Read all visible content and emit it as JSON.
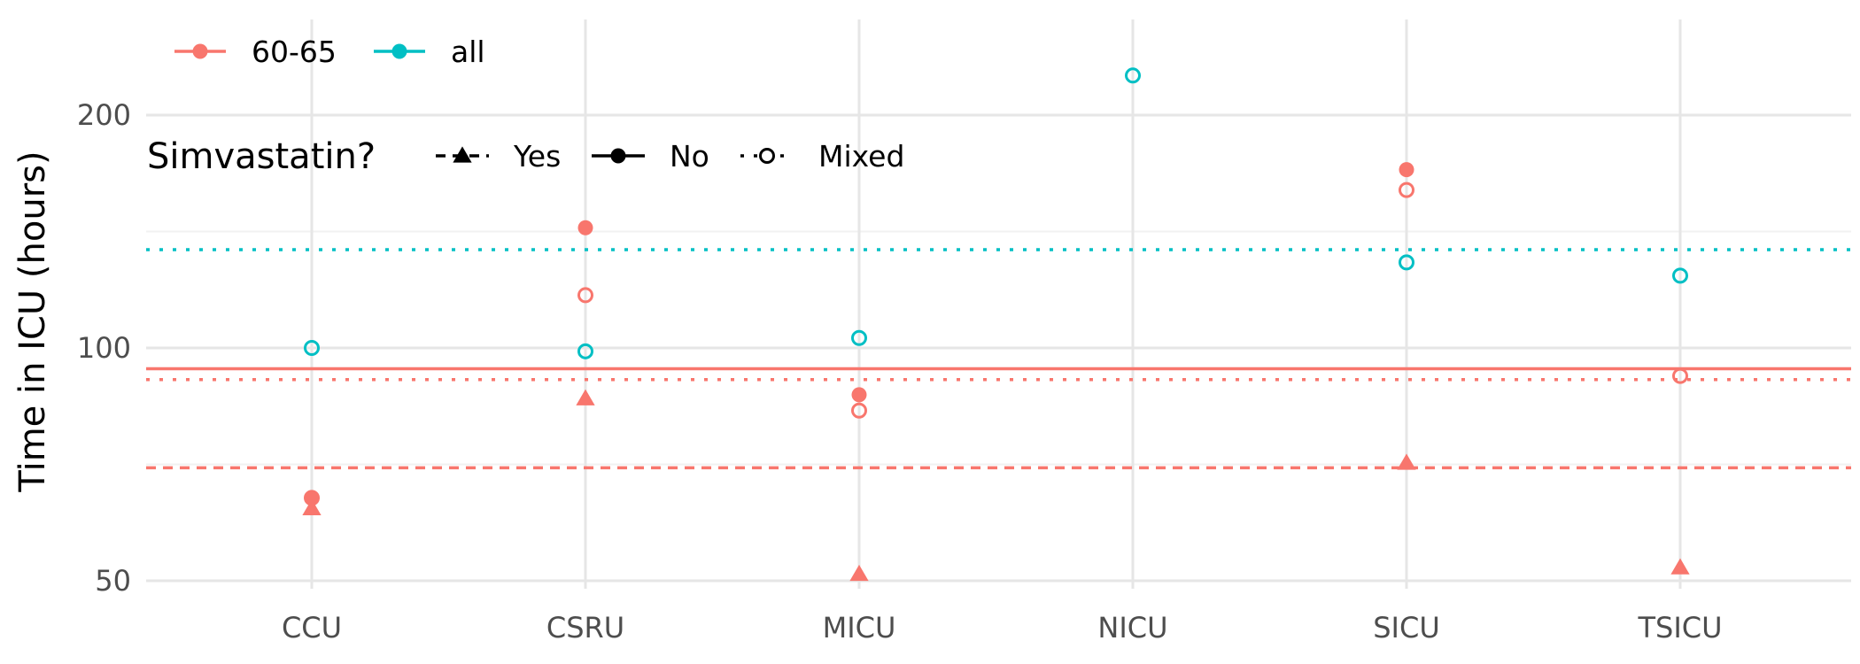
{
  "chart_data": {
    "type": "scatter",
    "ylabel": "Time in ICU (hours)",
    "y_scale": "log",
    "ylim": [
      49,
      230
    ],
    "y_ticks": [
      50,
      100,
      200
    ],
    "grid": true,
    "categories": [
      "CCU",
      "CSRU",
      "MICU",
      "NICU",
      "SICU",
      "TSICU"
    ],
    "legend": {
      "placement": "top-left",
      "color_entries": [
        {
          "label": "60-65",
          "color": "#F8766D"
        },
        {
          "label": "all",
          "color": "#00BFC4"
        }
      ],
      "shape_title": "Simvastatin?",
      "shape_entries": [
        {
          "label": "Yes",
          "shape": "triangle",
          "linetype": "dashed"
        },
        {
          "label": "No",
          "shape": "filled-circle",
          "linetype": "solid"
        },
        {
          "label": "Mixed",
          "shape": "open-circle",
          "linetype": "dotted"
        }
      ]
    },
    "series": [
      {
        "group": "60-65",
        "simvastatin": "Yes",
        "color": "#F8766D",
        "values": [
          62,
          86,
          51,
          null,
          71,
          52
        ]
      },
      {
        "group": "60-65",
        "simvastatin": "No",
        "color": "#F8766D",
        "values": [
          64,
          143,
          87,
          null,
          170,
          null
        ]
      },
      {
        "group": "60-65",
        "simvastatin": "Mixed",
        "color": "#F8766D",
        "values": [
          64,
          117,
          83,
          null,
          160,
          92
        ]
      },
      {
        "group": "all",
        "simvastatin": "Mixed",
        "color": "#00BFC4",
        "values": [
          100,
          99,
          103,
          225,
          129,
          124
        ]
      }
    ],
    "hlines": [
      {
        "group": "all",
        "simvastatin": "Mixed",
        "y": 134,
        "color": "#00BFC4",
        "linetype": "dotted"
      },
      {
        "group": "60-65",
        "simvastatin": "No",
        "y": 94,
        "color": "#F8766D",
        "linetype": "solid"
      },
      {
        "group": "60-65",
        "simvastatin": "Mixed",
        "y": 91,
        "color": "#F8766D",
        "linetype": "dotted"
      },
      {
        "group": "60-65",
        "simvastatin": "Yes",
        "y": 70,
        "color": "#F8766D",
        "linetype": "dashed"
      }
    ]
  }
}
